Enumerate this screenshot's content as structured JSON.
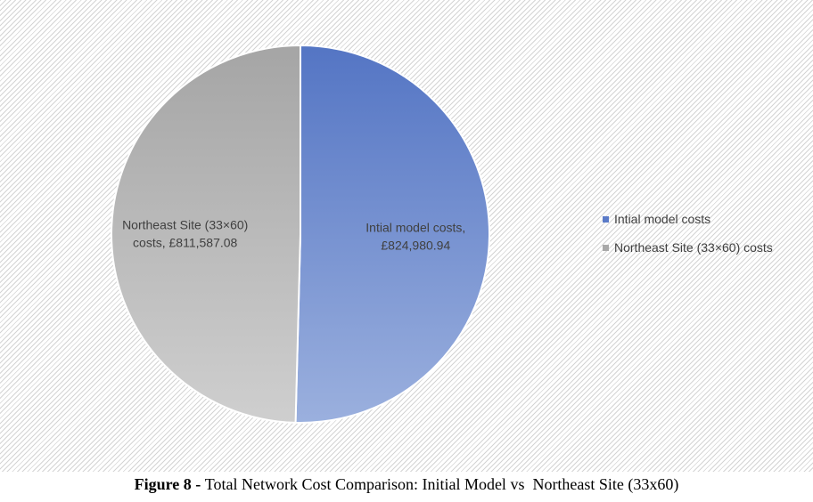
{
  "chart_data": {
    "type": "pie",
    "slices": [
      {
        "name": "Intial model costs",
        "value": 824980.94,
        "label_lines": [
          "Intial model costs,",
          "£824,980.94"
        ],
        "color_top": "#5475c4",
        "color_bottom": "#9bb0de"
      },
      {
        "name": "Northeast Site (33×60) costs",
        "value": 811587.08,
        "label_lines": [
          "Northeast Site (33×60)",
          "costs, £811,587.08"
        ],
        "color_top": "#a5a5a5",
        "color_bottom": "#cfcfcf"
      }
    ],
    "legend_position": "right",
    "legend_entries": [
      "Intial model costs",
      "Northeast Site (33×60) costs"
    ],
    "legend_colors": [
      "#5b7bc8",
      "#a9a9a9"
    ]
  },
  "caption": {
    "prefix": "Figure 8 - ",
    "text": "Total Network Cost Comparison: Initial Model vs  Northeast Site (33x60)"
  }
}
